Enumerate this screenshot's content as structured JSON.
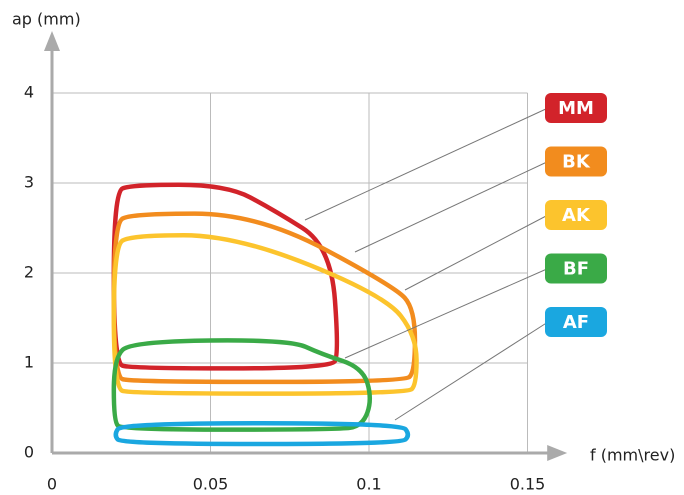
{
  "chart_data": {
    "type": "region",
    "x_label": "f (mm\\rev)",
    "y_label": "ap (mm)",
    "xlim": [
      0,
      0.16
    ],
    "ylim": [
      0,
      4.6
    ],
    "xticks": [
      0,
      0.05,
      0.1,
      0.15
    ],
    "yticks": [
      0,
      1,
      2,
      3,
      4
    ],
    "grid": true,
    "series": [
      {
        "name": "MM",
        "color": "#d2232a",
        "x": [
          0.0195,
          0.025,
          0.055,
          0.07,
          0.088,
          0.0905,
          0.088,
          0.025,
          0.0195
        ],
        "y": [
          2.9,
          2.98,
          2.98,
          2.7,
          2.3,
          1.1,
          0.94,
          0.94,
          1.0
        ]
      },
      {
        "name": "BK",
        "color": "#f28c1e",
        "x": [
          0.0195,
          0.025,
          0.065,
          0.108,
          0.1145,
          0.1145,
          0.111,
          0.025,
          0.0195
        ],
        "y": [
          2.55,
          2.66,
          2.66,
          1.85,
          1.6,
          0.9,
          0.79,
          0.79,
          0.85
        ]
      },
      {
        "name": "AK",
        "color": "#fcc42d",
        "x": [
          0.0195,
          0.025,
          0.058,
          0.105,
          0.115,
          0.115,
          0.112,
          0.025,
          0.0195
        ],
        "y": [
          2.3,
          2.42,
          2.42,
          1.75,
          1.3,
          0.76,
          0.66,
          0.66,
          0.72
        ]
      },
      {
        "name": "BF",
        "color": "#3aaa47",
        "x": [
          0.0195,
          0.025,
          0.075,
          0.085,
          0.098,
          0.101,
          0.098,
          0.09,
          0.022,
          0.0195
        ],
        "y": [
          1.05,
          1.24,
          1.26,
          1.1,
          0.95,
          0.6,
          0.3,
          0.26,
          0.26,
          0.35
        ]
      },
      {
        "name": "AF",
        "color": "#1aa7e0",
        "x": [
          0.022,
          0.11,
          0.113,
          0.11,
          0.022,
          0.0195
        ],
        "y": [
          0.1,
          0.1,
          0.2,
          0.33,
          0.33,
          0.2
        ]
      }
    ]
  }
}
